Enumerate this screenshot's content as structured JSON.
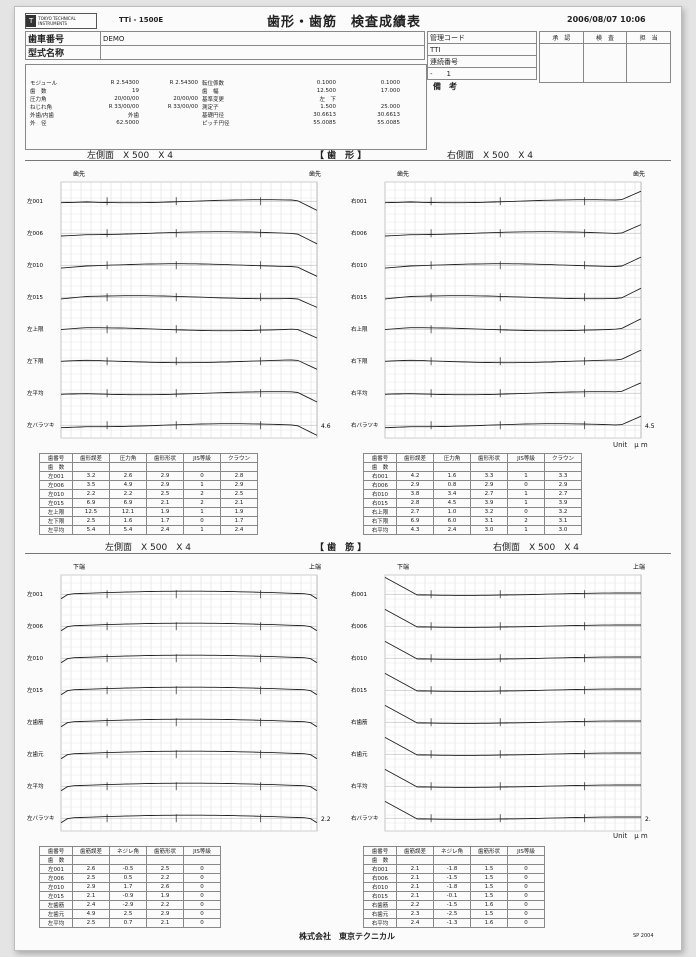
{
  "header": {
    "logo_text": "TOKYO TECHNICAL INSTRUMENTS",
    "logo_mark": "T",
    "model": "TTi - 1500E",
    "title": "歯形・歯筋　検査成績表",
    "datetime": "2006/08/07  10:06"
  },
  "info": {
    "gear_no_label": "歯車番号",
    "gear_no_value": "DEMO",
    "model_name_label": "型式名称",
    "model_name_value": "",
    "mgmt_code_label": "管理コード",
    "mgmt_code_value": "TTI",
    "serial_label": "連続番号",
    "serial_value": "-　　1",
    "remarks_label": "備　考",
    "approval": [
      "承　認",
      "検　査",
      "担　当"
    ]
  },
  "spec": {
    "left_labels": [
      "モジュール",
      "歯　数",
      "圧力角",
      "ねじれ角",
      "外歯/内歯",
      "外　径"
    ],
    "left_values": [
      "R 2.54300",
      "19",
      "20/00/00",
      "R 33/00/00",
      "外歯",
      "62.5000"
    ],
    "mid_values": [
      "R 2.54300",
      "",
      "20/00/00",
      "R 33/00/00",
      "",
      ""
    ],
    "mid_labels": [
      "転位係数",
      "歯　幅",
      "基準変更",
      "測定子",
      "基礎円径",
      "ピッチ円径"
    ],
    "right_values1": [
      "0.1000",
      "12.500",
      "左　下",
      "1.500",
      "30.6613",
      "55.0085"
    ],
    "right_values2": [
      "0.1000",
      "17.000",
      "",
      "25.000",
      "30.6613",
      "55.0085"
    ]
  },
  "profile_section": {
    "title": "【 歯　形 】",
    "left_caption": "左側面　X 500　X 4",
    "right_caption": "右側面　X 500　X 4",
    "top_label": "歯先",
    "right_top_label": "歯先",
    "left_end_value": "4.6",
    "right_end_value": "4.5",
    "unit": "Unit　μ m",
    "left_rows": [
      "左001",
      "左006",
      "左010",
      "左015",
      "左上限",
      "左下限",
      "左平均",
      "左バラツキ"
    ],
    "right_rows": [
      "右001",
      "右006",
      "右010",
      "右015",
      "右上限",
      "右下限",
      "右平均",
      "右バラツキ"
    ]
  },
  "profile_table": {
    "headers": [
      "歯番号",
      "歯形誤差",
      "圧力角",
      "歯形形状",
      "JIS等級",
      "クラウン"
    ],
    "row_label_header": "歯　数",
    "left_rows": [
      [
        "左001",
        "3.2",
        "2.6",
        "2.9",
        "0",
        "2.8"
      ],
      [
        "左006",
        "3.5",
        "4.9",
        "2.9",
        "1",
        "2.9"
      ],
      [
        "左010",
        "2.2",
        "2.2",
        "2.5",
        "2",
        "2.5"
      ],
      [
        "左015",
        "6.9",
        "6.9",
        "2.1",
        "2",
        "2.1"
      ],
      [
        "左上限",
        "12.5",
        "12.1",
        "1.9",
        "1",
        "1.9"
      ],
      [
        "左下限",
        "2.5",
        "1.6",
        "1.7",
        "0",
        "1.7"
      ],
      [
        "左平均",
        "5.4",
        "5.4",
        "2.4",
        "1",
        "2.4"
      ]
    ],
    "right_rows": [
      [
        "右001",
        "4.2",
        "1.6",
        "3.3",
        "1",
        "3.3"
      ],
      [
        "右006",
        "2.9",
        "0.8",
        "2.9",
        "0",
        "2.9"
      ],
      [
        "右010",
        "3.8",
        "3.4",
        "2.7",
        "1",
        "2.7"
      ],
      [
        "右015",
        "2.8",
        "4.5",
        "3.9",
        "1",
        "3.9"
      ],
      [
        "右上限",
        "2.7",
        "1.0",
        "3.2",
        "0",
        "3.2"
      ],
      [
        "右下限",
        "6.9",
        "6.0",
        "3.1",
        "2",
        "3.1"
      ],
      [
        "右平均",
        "4.3",
        "2.4",
        "3.0",
        "1",
        "3.0"
      ]
    ]
  },
  "lead_section": {
    "title": "【 歯　筋 】",
    "left_caption": "左側面　X 500　X 4",
    "right_caption": "右側面　X 500　X 4",
    "top_left_label": "下端",
    "top_right_label": "上端",
    "left_rows": [
      "左001",
      "左006",
      "左010",
      "左015",
      "左歯筋",
      "左歯元",
      "左平均",
      "左バラツキ"
    ],
    "right_rows": [
      "右001",
      "右006",
      "右010",
      "右015",
      "右歯筋",
      "右歯元",
      "右平均",
      "右バラツキ"
    ],
    "left_end_value": "2.2",
    "right_end_value": "2.",
    "unit": "Unit　μ m"
  },
  "lead_table": {
    "headers": [
      "歯番号",
      "歯筋誤差",
      "ネジレ角",
      "歯筋形状",
      "JIS等級"
    ],
    "row_label_header": "歯　数",
    "left_rows": [
      [
        "左001",
        "2.6",
        "-0.5",
        "2.5",
        "0"
      ],
      [
        "左006",
        "2.5",
        "0.5",
        "2.2",
        "0"
      ],
      [
        "左010",
        "2.9",
        "1.7",
        "2.6",
        "0"
      ],
      [
        "左015",
        "2.1",
        "-0.9",
        "1.9",
        "0"
      ],
      [
        "左歯筋",
        "2.4",
        "-2.9",
        "2.2",
        "0"
      ],
      [
        "左歯元",
        "4.9",
        "2.5",
        "2.9",
        "0"
      ],
      [
        "左平均",
        "2.5",
        "0.7",
        "2.1",
        "0"
      ]
    ],
    "right_rows": [
      [
        "右001",
        "2.1",
        "-1.8",
        "1.5",
        "0"
      ],
      [
        "右006",
        "2.1",
        "-1.5",
        "1.5",
        "0"
      ],
      [
        "右010",
        "2.1",
        "-1.8",
        "1.5",
        "0"
      ],
      [
        "右015",
        "2.1",
        "-0.1",
        "1.5",
        "0"
      ],
      [
        "右歯筋",
        "2.2",
        "-1.5",
        "1.6",
        "0"
      ],
      [
        "右歯元",
        "2.3",
        "-2.5",
        "1.5",
        "0"
      ],
      [
        "右平均",
        "2.4",
        "-1.3",
        "1.6",
        "0"
      ]
    ]
  },
  "footer": {
    "company": "株式会社　東京テクニカル",
    "code": "SP 2004"
  }
}
